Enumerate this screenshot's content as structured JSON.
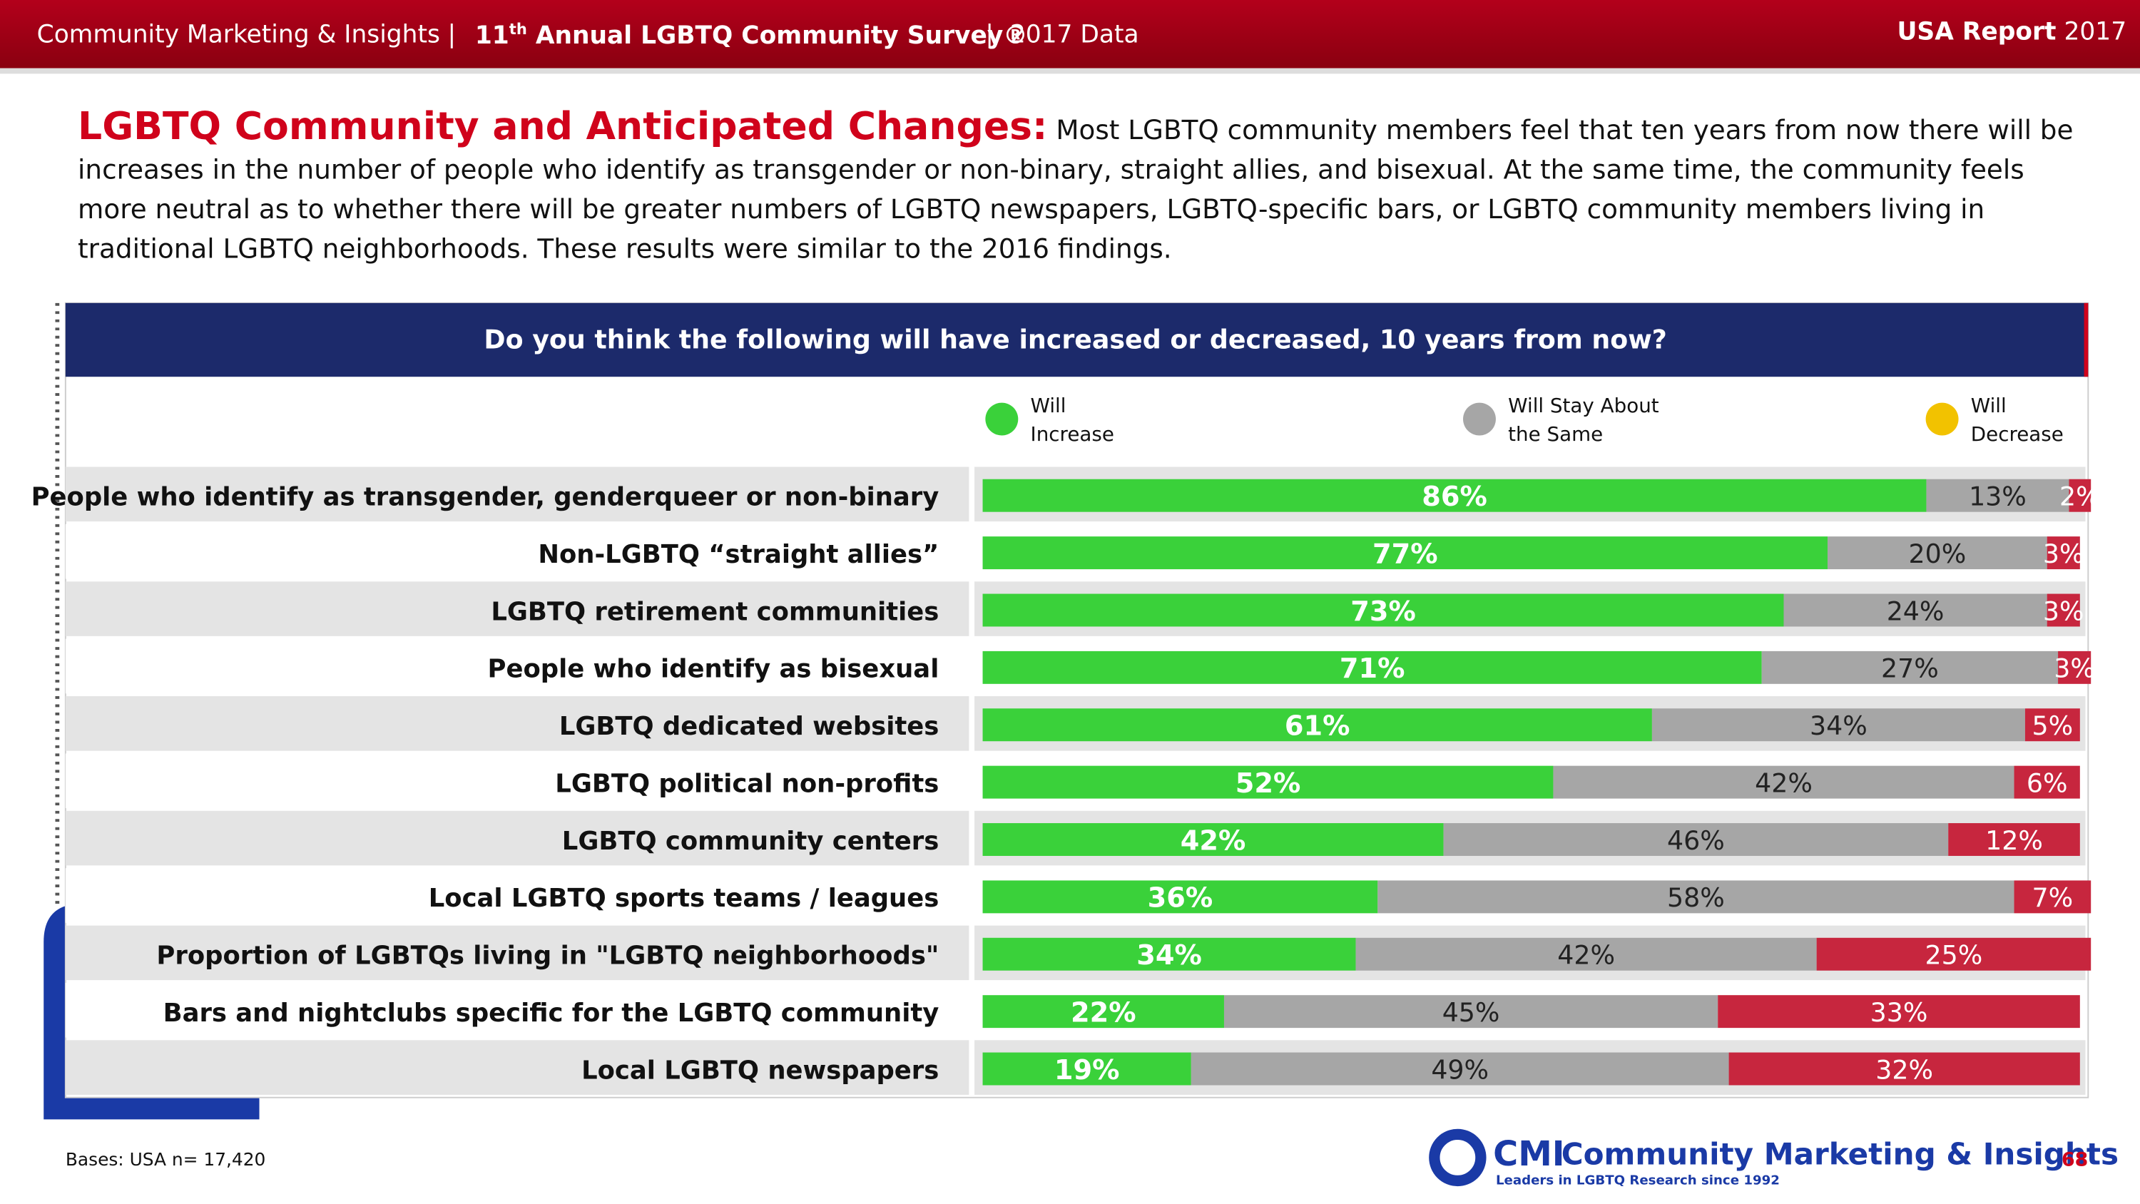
{
  "header": {
    "company": "Community Marketing & Insights",
    "survey_number": "11",
    "survey_suffix": "th",
    "survey_name": "Annual LGBTQ Community Survey®",
    "data_year": "2017 Data",
    "report": "USA Report",
    "report_year": "2017"
  },
  "intro": {
    "heading": "LGBTQ Community and Anticipated Changes:",
    "text": "Most LGBTQ community members feel that ten years from now there will be increases in the number of people who identify as transgender or non-binary, straight allies, and bisexual. At the same time, the community feels more neutral as to whether there will be greater numbers of LGBTQ newspapers, LGBTQ-specific bars, or LGBTQ community members living in traditional LGBTQ neighborhoods. These results were similar to the 2016 findings."
  },
  "chart_data": {
    "type": "stacked-bar-horizontal",
    "title": "Do you think the following will have increased or decreased, 10 years from now?",
    "categories": [
      "People who identify as transgender, genderqueer or non-binary",
      "Non-LGBTQ “straight allies”",
      "LGBTQ retirement communities",
      "People who identify as bisexual",
      "LGBTQ dedicated websites",
      "LGBTQ political non-profits",
      "LGBTQ community centers",
      "Local LGBTQ sports teams / leagues",
      "Proportion of LGBTQs  living in \"LGBTQ neighborhoods\"",
      "Bars and nightclubs specific for the LGBTQ community",
      "Local LGBTQ newspapers"
    ],
    "series": [
      {
        "name": "Will Increase",
        "color": "#3ad13a",
        "legend_color": "#3ad13a",
        "values": [
          86,
          77,
          73,
          71,
          61,
          52,
          42,
          36,
          34,
          22,
          19
        ],
        "value_labels": [
          "86%",
          "77%",
          "73%",
          "71%",
          "61%",
          "52%",
          "42%",
          "36%",
          "34%",
          "22%",
          "19%"
        ]
      },
      {
        "name": "Will Stay About the Same",
        "color": "#a6a6a6",
        "legend_color": "#a6a6a6",
        "values": [
          13,
          20,
          24,
          27,
          34,
          42,
          46,
          58,
          42,
          45,
          49
        ],
        "value_labels": [
          "13%",
          "20%",
          "24%",
          "27%",
          "34%",
          "42%",
          "46%",
          "58%",
          "42%",
          "45%",
          "49%"
        ]
      },
      {
        "name": "Will Decrease",
        "color": "#c7263e",
        "legend_color": "#f2c200",
        "values": [
          2,
          3,
          3,
          3,
          5,
          6,
          12,
          7,
          25,
          33,
          32
        ],
        "value_labels": [
          "2%",
          "3%",
          "3%",
          "3%",
          "5%",
          "6%",
          "12%",
          "7%",
          "25%",
          "33%",
          "32%"
        ]
      }
    ]
  },
  "footer": {
    "bases": "Bases: USA n= 17,420",
    "logo": "CMI",
    "company": "Community Marketing & Insights",
    "tagline": "Leaders in LGBTQ Research since 1992",
    "page": "68"
  }
}
